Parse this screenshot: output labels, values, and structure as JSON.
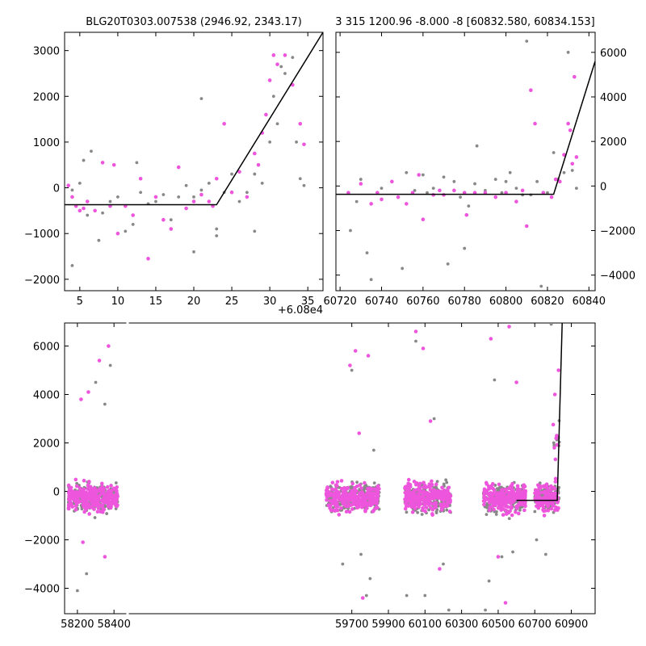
{
  "chart_data": [
    {
      "type": "scatter",
      "title": "BLG20T0303.007538 (2946.92, 2343.17)",
      "offset_label": "+6.08e4",
      "xlim": [
        3,
        37
      ],
      "ylim": [
        -2250,
        3400
      ],
      "xticks": [
        5,
        10,
        15,
        20,
        25,
        30,
        35
      ],
      "yticks": [
        -2000,
        -1000,
        0,
        1000,
        2000,
        3000
      ],
      "xticklabels": [
        "5",
        "10",
        "15",
        "20",
        "25",
        "30",
        "35"
      ],
      "yticklabels": [
        "−2000",
        "−1000",
        "0",
        "1000",
        "2000",
        "3000"
      ],
      "model": [
        [
          3,
          -370
        ],
        [
          23,
          -370
        ],
        [
          37,
          3400
        ]
      ],
      "series": [
        {
          "color": "#888888",
          "points": [
            [
              4,
              -50
            ],
            [
              4,
              -1700
            ],
            [
              5,
              100
            ],
            [
              5.5,
              600
            ],
            [
              6,
              -600
            ],
            [
              6.5,
              800
            ],
            [
              7.5,
              -1150
            ],
            [
              8,
              -550
            ],
            [
              9,
              -300
            ],
            [
              10,
              -200
            ],
            [
              11,
              -950
            ],
            [
              12,
              -800
            ],
            [
              12.5,
              550
            ],
            [
              13,
              -100
            ],
            [
              14,
              -350
            ],
            [
              15,
              -300
            ],
            [
              16,
              -150
            ],
            [
              17,
              -700
            ],
            [
              18,
              -200
            ],
            [
              19,
              50
            ],
            [
              20,
              -200
            ],
            [
              20,
              -1400
            ],
            [
              21,
              1950
            ],
            [
              21,
              -50
            ],
            [
              22,
              100
            ],
            [
              23,
              -900
            ],
            [
              23,
              -1050
            ],
            [
              24,
              -100
            ],
            [
              25,
              300
            ],
            [
              26,
              -300
            ],
            [
              27,
              -100
            ],
            [
              28,
              300
            ],
            [
              28,
              -950
            ],
            [
              29,
              100
            ],
            [
              30,
              1000
            ],
            [
              30.5,
              2000
            ],
            [
              31,
              1400
            ],
            [
              31.5,
              2650
            ],
            [
              32,
              2500
            ],
            [
              33,
              2850
            ],
            [
              33.5,
              1000
            ],
            [
              34,
              200
            ],
            [
              34.5,
              50
            ]
          ]
        },
        {
          "color": "#ee55dd",
          "points": [
            [
              3.5,
              50
            ],
            [
              4,
              -200
            ],
            [
              4.5,
              -400
            ],
            [
              5,
              -500
            ],
            [
              5.5,
              -450
            ],
            [
              6,
              -300
            ],
            [
              7,
              -500
            ],
            [
              8,
              550
            ],
            [
              9,
              -400
            ],
            [
              9.5,
              500
            ],
            [
              10,
              -1000
            ],
            [
              11,
              -400
            ],
            [
              12,
              -600
            ],
            [
              13,
              200
            ],
            [
              14,
              -1550
            ],
            [
              15,
              -200
            ],
            [
              16,
              -700
            ],
            [
              17,
              -900
            ],
            [
              18,
              450
            ],
            [
              19,
              -450
            ],
            [
              20,
              -300
            ],
            [
              21,
              -150
            ],
            [
              22,
              -300
            ],
            [
              22.5,
              -400
            ],
            [
              23,
              200
            ],
            [
              24,
              1400
            ],
            [
              25,
              -100
            ],
            [
              26,
              350
            ],
            [
              27,
              -200
            ],
            [
              28,
              750
            ],
            [
              28.5,
              500
            ],
            [
              29,
              1200
            ],
            [
              29.5,
              1600
            ],
            [
              30,
              2350
            ],
            [
              30.5,
              2900
            ],
            [
              31,
              2700
            ],
            [
              32,
              2900
            ],
            [
              33,
              2250
            ],
            [
              34,
              1400
            ],
            [
              34.5,
              950
            ]
          ]
        }
      ]
    },
    {
      "type": "scatter",
      "title": "3 315 1200.96 -8.000 -8 [60832.580, 60834.153]",
      "xlim": [
        60718,
        60843
      ],
      "ylim": [
        -4700,
        6900
      ],
      "xticks": [
        60720,
        60740,
        60760,
        60780,
        60800,
        60820,
        60840
      ],
      "yticks": [
        -4000,
        -2000,
        0,
        2000,
        4000,
        6000
      ],
      "xticklabels": [
        "60720",
        "60740",
        "60760",
        "60780",
        "60800",
        "60820",
        "60840"
      ],
      "yticklabels": [
        "−4000",
        "−2000",
        "0",
        "2000",
        "4000",
        "6000"
      ],
      "model": [
        [
          60718,
          -370
        ],
        [
          60823,
          -370
        ],
        [
          60843,
          5600
        ]
      ],
      "series": [
        {
          "color": "#888888",
          "points": [
            [
              60725,
              -2000
            ],
            [
              60728,
              -700
            ],
            [
              60730,
              300
            ],
            [
              60733,
              -3000
            ],
            [
              60735,
              -4200
            ],
            [
              60740,
              -100
            ],
            [
              60745,
              200
            ],
            [
              60750,
              -3700
            ],
            [
              60752,
              600
            ],
            [
              60756,
              -200
            ],
            [
              60760,
              500
            ],
            [
              60762,
              -300
            ],
            [
              60765,
              -100
            ],
            [
              60770,
              400
            ],
            [
              60772,
              -3500
            ],
            [
              60775,
              200
            ],
            [
              60778,
              -500
            ],
            [
              60780,
              -2800
            ],
            [
              60782,
              -900
            ],
            [
              60785,
              100
            ],
            [
              60786,
              1800
            ],
            [
              60790,
              -200
            ],
            [
              60795,
              300
            ],
            [
              60798,
              -300
            ],
            [
              60800,
              200
            ],
            [
              60802,
              600
            ],
            [
              60805,
              -100
            ],
            [
              60808,
              -400
            ],
            [
              60810,
              6500
            ],
            [
              60812,
              -400
            ],
            [
              60815,
              200
            ],
            [
              60817,
              -4500
            ],
            [
              60820,
              -300
            ],
            [
              60823,
              1500
            ],
            [
              60825,
              300
            ],
            [
              60828,
              600
            ],
            [
              60830,
              6000
            ],
            [
              60832,
              700
            ],
            [
              60834,
              -100
            ]
          ]
        },
        {
          "color": "#ee55dd",
          "points": [
            [
              60724,
              -300
            ],
            [
              60730,
              100
            ],
            [
              60735,
              -800
            ],
            [
              60738,
              -300
            ],
            [
              60740,
              -600
            ],
            [
              60745,
              200
            ],
            [
              60748,
              -500
            ],
            [
              60752,
              -800
            ],
            [
              60755,
              -300
            ],
            [
              60758,
              500
            ],
            [
              60760,
              -1500
            ],
            [
              60765,
              -400
            ],
            [
              60768,
              -200
            ],
            [
              60770,
              -400
            ],
            [
              60775,
              -200
            ],
            [
              60780,
              -300
            ],
            [
              60781,
              -1300
            ],
            [
              60785,
              -300
            ],
            [
              60790,
              -300
            ],
            [
              60795,
              -500
            ],
            [
              60800,
              -300
            ],
            [
              60805,
              -700
            ],
            [
              60808,
              -200
            ],
            [
              60810,
              -1800
            ],
            [
              60812,
              4300
            ],
            [
              60814,
              2800
            ],
            [
              60818,
              -300
            ],
            [
              60822,
              -500
            ],
            [
              60824,
              300
            ],
            [
              60826,
              200
            ],
            [
              60828,
              1400
            ],
            [
              60830,
              2800
            ],
            [
              60831,
              2500
            ],
            [
              60832,
              1000
            ],
            [
              60833,
              4900
            ],
            [
              60834,
              1300
            ]
          ]
        }
      ]
    },
    {
      "type": "scatter",
      "xlim": [
        58130,
        61030
      ],
      "ylim": [
        -5050,
        6950
      ],
      "gap_after": 58450,
      "xticks": [
        58200,
        58400,
        59700,
        59900,
        60100,
        60300,
        60500,
        60700,
        60900
      ],
      "yticks": [
        -4000,
        -2000,
        0,
        2000,
        4000,
        6000
      ],
      "xticklabels": [
        "58200",
        "58400",
        "59700",
        "59900",
        "60100",
        "60300",
        "60500",
        "60700",
        "60900"
      ],
      "yticklabels": [
        "−4000",
        "−2000",
        "0",
        "2000",
        "4000",
        "6000"
      ],
      "model": [
        [
          60600,
          -370
        ],
        [
          60823,
          -370
        ],
        [
          60850,
          6950
        ]
      ],
      "series": [
        {
          "color": "#888888",
          "seasons": [
            [
              58150,
              58420
            ],
            [
              59560,
              59850
            ],
            [
              59990,
              60240
            ],
            [
              60420,
              60650
            ],
            [
              60700,
              60835
            ]
          ],
          "outliers": [
            [
              58200,
              -4100
            ],
            [
              58250,
              -3400
            ],
            [
              58300,
              4500
            ],
            [
              58350,
              3600
            ],
            [
              58380,
              5200
            ],
            [
              59650,
              -3000
            ],
            [
              59700,
              5000
            ],
            [
              59750,
              -2600
            ],
            [
              59780,
              -4300
            ],
            [
              59800,
              -3600
            ],
            [
              59820,
              1700
            ],
            [
              60000,
              -4300
            ],
            [
              60050,
              6200
            ],
            [
              60100,
              -4300
            ],
            [
              60150,
              3000
            ],
            [
              60200,
              -3000
            ],
            [
              60230,
              -4900
            ],
            [
              60430,
              -4900
            ],
            [
              60450,
              -3700
            ],
            [
              60480,
              4600
            ],
            [
              60520,
              -2700
            ],
            [
              60580,
              -2500
            ],
            [
              60710,
              -2000
            ],
            [
              60760,
              -2600
            ],
            [
              60790,
              6900
            ]
          ]
        },
        {
          "color": "#ee55dd",
          "seasons": [
            [
              58150,
              58420
            ],
            [
              59560,
              59850
            ],
            [
              59990,
              60240
            ],
            [
              60420,
              60650
            ],
            [
              60700,
              60830
            ]
          ],
          "outliers": [
            [
              58220,
              3800
            ],
            [
              58230,
              -2100
            ],
            [
              58260,
              4100
            ],
            [
              58320,
              5400
            ],
            [
              58350,
              -2700
            ],
            [
              58370,
              6000
            ],
            [
              59690,
              5200
            ],
            [
              59720,
              5800
            ],
            [
              59740,
              2400
            ],
            [
              59760,
              -4400
            ],
            [
              59790,
              5600
            ],
            [
              60050,
              6600
            ],
            [
              60090,
              5900
            ],
            [
              60130,
              2900
            ],
            [
              60180,
              -3200
            ],
            [
              60460,
              6300
            ],
            [
              60500,
              -2700
            ],
            [
              60540,
              -4600
            ],
            [
              60560,
              6800
            ],
            [
              60600,
              4500
            ],
            [
              60810,
              4000
            ],
            [
              60820,
              2300
            ],
            [
              60830,
              5000
            ]
          ]
        }
      ]
    }
  ]
}
